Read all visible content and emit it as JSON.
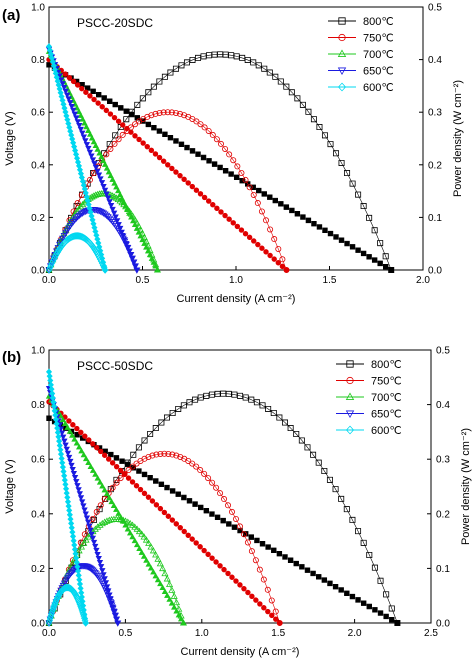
{
  "figure": {
    "panels": [
      {
        "panel_label": "(a)",
        "chart_data": {
          "type": "line",
          "title": "PSCC-20SDC",
          "xlabel": "Current density (A cm⁻²)",
          "ylabel": "Voltage (V)",
          "y2label": "Power density (W cm⁻²)",
          "xlim": [
            0,
            2.0
          ],
          "ylim": [
            0,
            1.0
          ],
          "y2lim": [
            0,
            0.5
          ],
          "xticks": [
            "0.0",
            "0.5",
            "1.0",
            "1.5",
            "2.0"
          ],
          "yticks": [
            "0.0",
            "0.2",
            "0.4",
            "0.6",
            "0.8",
            "1.0"
          ],
          "y2ticks": [
            "0.0",
            "0.1",
            "0.2",
            "0.3",
            "0.4",
            "0.5"
          ],
          "legend_position": "top-right",
          "series": [
            {
              "name": "800℃",
              "color": "#000000",
              "marker": "square",
              "ocv": 0.78,
              "jmax": 1.83,
              "pmax": 0.41
            },
            {
              "name": "750℃",
              "color": "#e00000",
              "marker": "circle",
              "ocv": 0.8,
              "jmax": 1.27,
              "pmax": 0.3
            },
            {
              "name": "700℃",
              "color": "#1ec81e",
              "marker": "triangle-up",
              "ocv": 0.83,
              "jmax": 0.58,
              "pmax": 0.145
            },
            {
              "name": "650℃",
              "color": "#1a1ae0",
              "marker": "triangle-down",
              "ocv": 0.84,
              "jmax": 0.47,
              "pmax": 0.115
            },
            {
              "name": "600℃",
              "color": "#00d8f0",
              "marker": "diamond",
              "ocv": 0.85,
              "jmax": 0.3,
              "pmax": 0.065
            }
          ]
        }
      },
      {
        "panel_label": "(b)",
        "chart_data": {
          "type": "line",
          "title": "PSCC-50SDC",
          "xlabel": "Current density (A cm⁻²)",
          "ylabel": "Voltage (V)",
          "y2label": "Power density (W cm⁻²)",
          "xlim": [
            0,
            2.5
          ],
          "ylim": [
            0,
            1.0
          ],
          "y2lim": [
            0,
            0.5
          ],
          "xticks": [
            "0.0",
            "0.5",
            "1.0",
            "1.5",
            "2.0",
            "2.5"
          ],
          "yticks": [
            "0.0",
            "0.2",
            "0.4",
            "0.6",
            "0.8",
            "1.0"
          ],
          "y2ticks": [
            "0.0",
            "0.1",
            "0.2",
            "0.3",
            "0.4",
            "0.5"
          ],
          "legend_position": "top-right",
          "series": [
            {
              "name": "800℃",
              "color": "#000000",
              "marker": "square",
              "ocv": 0.75,
              "jmax": 2.28,
              "pmax": 0.42
            },
            {
              "name": "750℃",
              "color": "#e00000",
              "marker": "circle",
              "ocv": 0.81,
              "jmax": 1.51,
              "pmax": 0.31
            },
            {
              "name": "700℃",
              "color": "#1ec81e",
              "marker": "triangle-up",
              "ocv": 0.83,
              "jmax": 0.88,
              "pmax": 0.19
            },
            {
              "name": "650℃",
              "color": "#1a1ae0",
              "marker": "triangle-down",
              "ocv": 0.86,
              "jmax": 0.45,
              "pmax": 0.105
            },
            {
              "name": "600℃",
              "color": "#00d8f0",
              "marker": "diamond",
              "ocv": 0.92,
              "jmax": 0.24,
              "pmax": 0.065
            }
          ]
        }
      }
    ]
  }
}
